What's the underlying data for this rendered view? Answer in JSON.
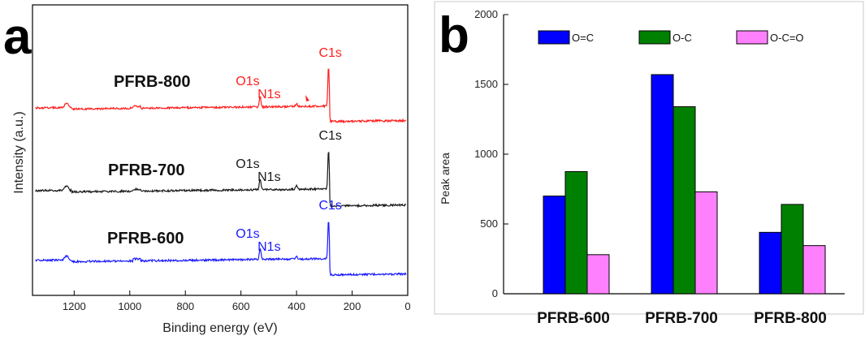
{
  "panel_letters": {
    "a": "a",
    "b": "b"
  },
  "chart_data": [
    {
      "type": "line",
      "panel": "a",
      "xlabel": "Binding energy (eV)",
      "ylabel": "Intensity (a.u.)",
      "xlim": [
        1350,
        0
      ],
      "x_reversed": true,
      "xticks": [
        1200,
        1000,
        800,
        600,
        400,
        200,
        0
      ],
      "y_ticks_shown": false,
      "series": [
        {
          "name": "PFRB-800",
          "color": "#ff2020",
          "peaks": [
            {
              "label": "O1s",
              "x": 531,
              "label_color": "#ff2020"
            },
            {
              "label": "N1s",
              "x": 400,
              "label_color": "#ff2020"
            },
            {
              "label": "C1s",
              "x": 285,
              "label_color": "#ff2020"
            }
          ]
        },
        {
          "name": "PFRB-700",
          "color": "#1a1a1a",
          "peaks": [
            {
              "label": "O1s",
              "x": 531,
              "label_color": "#1a1a1a"
            },
            {
              "label": "N1s",
              "x": 400,
              "label_color": "#1a1a1a"
            },
            {
              "label": "C1s",
              "x": 285,
              "label_color": "#1a1a1a"
            }
          ]
        },
        {
          "name": "PFRB-600",
          "color": "#1a1aff",
          "peaks": [
            {
              "label": "O1s",
              "x": 531,
              "label_color": "#1a1aff"
            },
            {
              "label": "N1s",
              "x": 400,
              "label_color": "#1a1aff"
            },
            {
              "label": "C1s",
              "x": 285,
              "label_color": "#1a1aff"
            }
          ]
        }
      ]
    },
    {
      "type": "bar",
      "panel": "b",
      "xlabel": "",
      "ylabel": "Peak area",
      "ylim": [
        0,
        2000
      ],
      "yticks": [
        0,
        500,
        1000,
        1500,
        2000
      ],
      "categories": [
        "PFRB-600",
        "PFRB-700",
        "PFRB-800"
      ],
      "legend_position": "top",
      "series": [
        {
          "name": "O=C",
          "color": "#0000ff",
          "values": [
            700,
            1570,
            440
          ]
        },
        {
          "name": "O-C",
          "color": "#008000",
          "values": [
            875,
            1340,
            640
          ]
        },
        {
          "name": "O-C=O",
          "color": "#ff80ff",
          "values": [
            280,
            730,
            345
          ]
        }
      ]
    }
  ]
}
